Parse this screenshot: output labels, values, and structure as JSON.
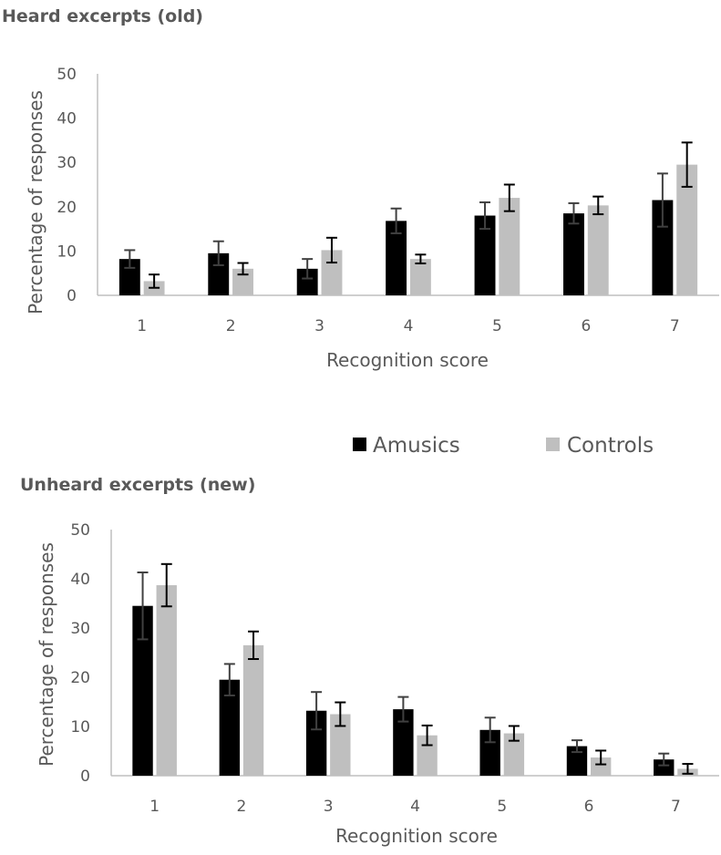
{
  "legend": {
    "position": "center",
    "entries": [
      {
        "name": "Amusics",
        "color": "#000000"
      },
      {
        "name": "Controls",
        "color": "#bfbfbf"
      }
    ]
  },
  "chart_data": [
    {
      "type": "bar",
      "title": "Heard excerpts (old)",
      "xlabel": "Recognition score",
      "ylabel": "Percentage of responses",
      "ylim": [
        0,
        50
      ],
      "yticks": [
        0,
        10,
        20,
        30,
        40,
        50
      ],
      "grid": false,
      "categories": [
        "1",
        "2",
        "3",
        "4",
        "5",
        "6",
        "7"
      ],
      "series": [
        {
          "name": "Amusics",
          "color": "#000000",
          "values": [
            8.2,
            9.5,
            6.0,
            16.8,
            18.0,
            18.5,
            21.5
          ],
          "errors": [
            2.0,
            2.7,
            2.2,
            2.8,
            3.0,
            2.3,
            6.0
          ]
        },
        {
          "name": "Controls",
          "color": "#bfbfbf",
          "values": [
            3.2,
            6.0,
            10.2,
            8.2,
            22.0,
            20.3,
            29.5
          ],
          "errors": [
            1.5,
            1.3,
            2.8,
            1.0,
            3.0,
            2.0,
            5.0
          ]
        }
      ]
    },
    {
      "type": "bar",
      "title": "Unheard excerpts (new)",
      "xlabel": "Recognition score",
      "ylabel": "Percentage of responses",
      "ylim": [
        0,
        50
      ],
      "yticks": [
        0,
        10,
        20,
        30,
        40,
        50
      ],
      "grid": false,
      "categories": [
        "1",
        "2",
        "3",
        "4",
        "5",
        "6",
        "7"
      ],
      "series": [
        {
          "name": "Amusics",
          "color": "#000000",
          "values": [
            34.5,
            19.5,
            13.2,
            13.5,
            9.3,
            6.0,
            3.3
          ],
          "errors": [
            6.8,
            3.2,
            3.8,
            2.5,
            2.5,
            1.2,
            1.2
          ]
        },
        {
          "name": "Controls",
          "color": "#bfbfbf",
          "values": [
            38.7,
            26.5,
            12.5,
            8.2,
            8.6,
            3.7,
            1.4
          ],
          "errors": [
            4.3,
            2.8,
            2.4,
            2.0,
            1.5,
            1.4,
            1.0
          ]
        }
      ]
    }
  ]
}
